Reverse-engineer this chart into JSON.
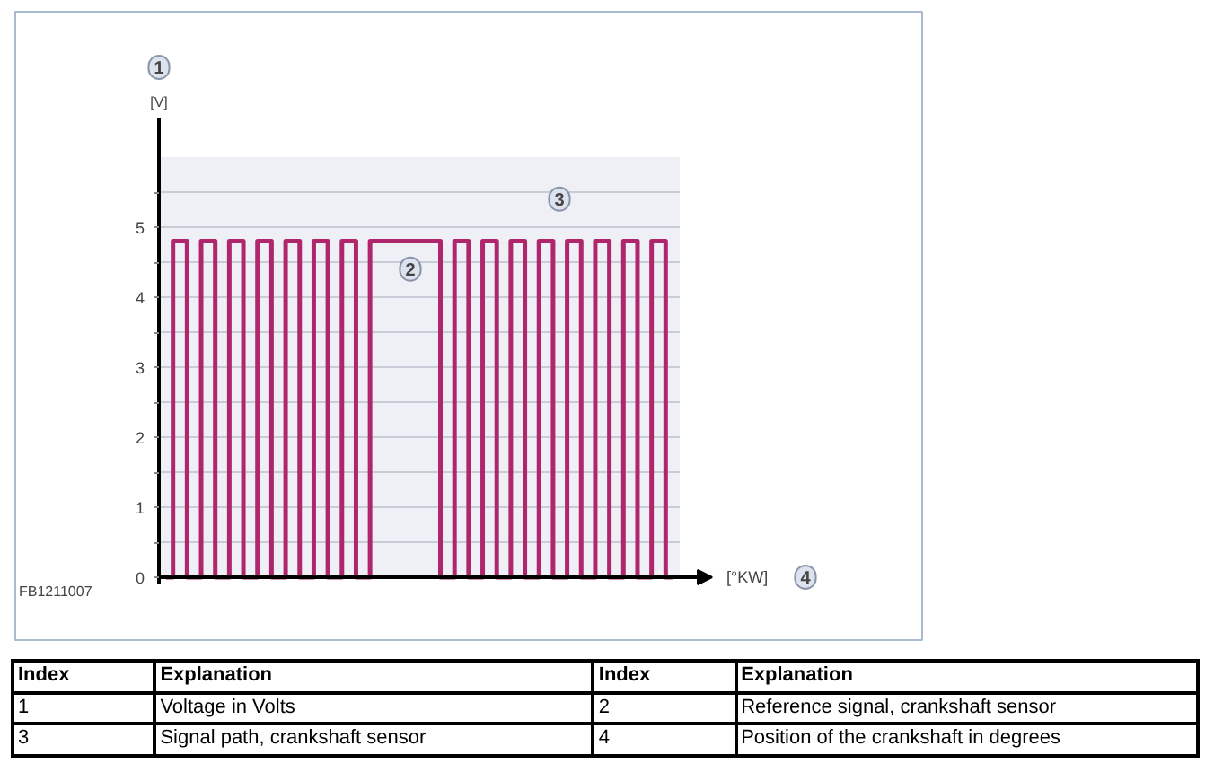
{
  "chart_data": {
    "type": "step",
    "xlabel": "[°KW]",
    "ylabel": "[V]",
    "categories": [
      null,
      null,
      null,
      null,
      null,
      null,
      null,
      null,
      null,
      null,
      null,
      null,
      null,
      null,
      null,
      null,
      null,
      null,
      null,
      null,
      null,
      null,
      null,
      null,
      null,
      null,
      null,
      null,
      null,
      null,
      null,
      null,
      null,
      null,
      null,
      null,
      null
    ],
    "series": [
      {
        "color": "#b0266c",
        "values": [
          0,
          4.8,
          0,
          4.8,
          0,
          4.8,
          0,
          4.8,
          0,
          4.8,
          0,
          4.8,
          0,
          4.8,
          0,
          4.8,
          4.8,
          4.8,
          4.8,
          4.8,
          0,
          4.8,
          0,
          4.8,
          0,
          4.8,
          0,
          4.8,
          0,
          4.8,
          0,
          4.8,
          0,
          4.8,
          0,
          4.8,
          0
        ]
      }
    ],
    "ylim": [
      0,
      6
    ],
    "yticks": [
      0,
      {
        "value": 0.5,
        "label": null
      },
      1,
      {
        "value": 1.5,
        "label": null
      },
      2,
      {
        "value": 2.5,
        "label": null
      },
      3,
      {
        "value": 3.5,
        "label": null
      },
      4,
      {
        "value": 4.5,
        "label": null
      },
      5,
      {
        "value": 5.5,
        "label": null
      }
    ],
    "tick_labels": "y",
    "grid": "y",
    "line_style": "solid",
    "annotations": [
      "1",
      "4",
      "2",
      "3",
      "FB1211007",
      "Index",
      "Explanation",
      "Index",
      "Explanation",
      "1",
      "Voltage in Volts",
      "2",
      "Reference signal, crankshaft sensor",
      "3",
      "Signal path, crankshaft sensor",
      "4",
      "Position of the crankshaft in degrees"
    ]
  }
}
